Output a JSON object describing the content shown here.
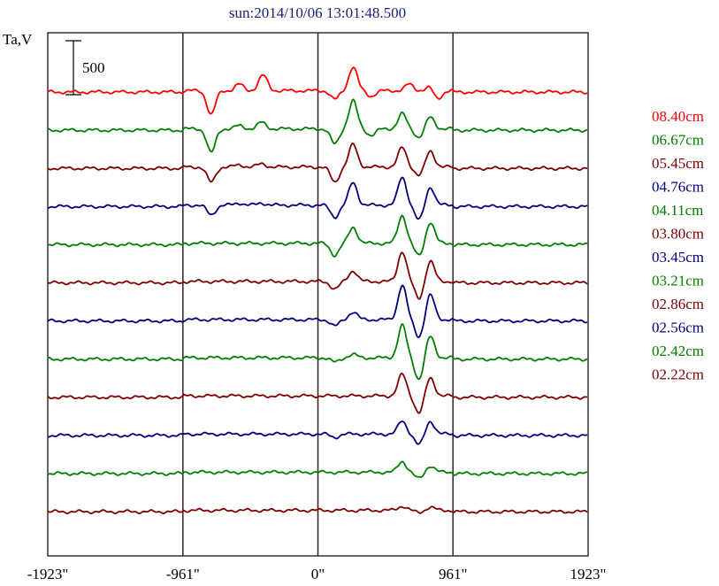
{
  "chart_data": {
    "type": "line",
    "title": "sun:2014/10/06 13:01:48.500",
    "ylabel": "Ta,V",
    "xlabel": "",
    "xlim": [
      -1923,
      1923
    ],
    "x_ticks": [
      {
        "value": -1923,
        "label": "-1923\""
      },
      {
        "value": -961,
        "label": "-961\""
      },
      {
        "value": 0,
        "label": "0\""
      },
      {
        "value": 961,
        "label": "961\""
      },
      {
        "value": 1923,
        "label": "1923\""
      }
    ],
    "vertical_lines": [
      -961,
      0,
      961
    ],
    "scale_bar": {
      "value": 500,
      "label": "500"
    },
    "grid": false,
    "legend_position": "right",
    "series": [
      {
        "name": "08.40cm",
        "color": "#ff0000",
        "peaks": [
          [
            -760,
            -220
          ],
          [
            -560,
            60
          ],
          [
            -400,
            80
          ],
          [
            -380,
            70
          ],
          [
            120,
            -80
          ],
          [
            250,
            220
          ],
          [
            380,
            -50
          ],
          [
            650,
            60
          ],
          [
            850,
            -80
          ],
          [
            800,
            40
          ]
        ]
      },
      {
        "name": "06.67cm",
        "color": "#008000",
        "peaks": [
          [
            -760,
            -220
          ],
          [
            -560,
            30
          ],
          [
            -400,
            60
          ],
          [
            120,
            -140
          ],
          [
            250,
            260
          ],
          [
            380,
            -60
          ],
          [
            600,
            140
          ],
          [
            720,
            -80
          ],
          [
            800,
            110
          ]
        ]
      },
      {
        "name": "05.45cm",
        "color": "#800000",
        "peaks": [
          [
            -760,
            -140
          ],
          [
            -560,
            20
          ],
          [
            -400,
            30
          ],
          [
            120,
            -140
          ],
          [
            250,
            210
          ],
          [
            600,
            180
          ],
          [
            720,
            -80
          ],
          [
            800,
            150
          ]
        ]
      },
      {
        "name": "04.76cm",
        "color": "#000080",
        "peaks": [
          [
            -760,
            -90
          ],
          [
            -560,
            20
          ],
          [
            -400,
            20
          ],
          [
            120,
            -110
          ],
          [
            250,
            210
          ],
          [
            600,
            260
          ],
          [
            720,
            -140
          ],
          [
            800,
            170
          ]
        ]
      },
      {
        "name": "04.11cm",
        "color": "#008000",
        "peaks": [
          [
            120,
            -110
          ],
          [
            250,
            150
          ],
          [
            600,
            260
          ],
          [
            720,
            -120
          ],
          [
            800,
            200
          ]
        ]
      },
      {
        "name": "03.80cm",
        "color": "#800000",
        "peaks": [
          [
            120,
            -70
          ],
          [
            250,
            100
          ],
          [
            600,
            280
          ],
          [
            720,
            -160
          ],
          [
            800,
            190
          ]
        ]
      },
      {
        "name": "03.45cm",
        "color": "#000080",
        "peaks": [
          [
            120,
            -60
          ],
          [
            250,
            70
          ],
          [
            600,
            320
          ],
          [
            720,
            -160
          ],
          [
            800,
            230
          ]
        ]
      },
      {
        "name": "03.21cm",
        "color": "#008000",
        "peaks": [
          [
            120,
            -40
          ],
          [
            250,
            30
          ],
          [
            600,
            300
          ],
          [
            720,
            -200
          ],
          [
            800,
            200
          ]
        ]
      },
      {
        "name": "02.86cm",
        "color": "#800000",
        "peaks": [
          [
            600,
            200
          ],
          [
            720,
            -160
          ],
          [
            800,
            170
          ]
        ]
      },
      {
        "name": "02.56cm",
        "color": "#000080",
        "peaks": [
          [
            120,
            -30
          ],
          [
            600,
            120
          ],
          [
            720,
            -100
          ],
          [
            800,
            120
          ]
        ]
      },
      {
        "name": "02.42cm",
        "color": "#008000",
        "peaks": [
          [
            600,
            100
          ],
          [
            720,
            -60
          ],
          [
            800,
            60
          ]
        ]
      },
      {
        "name": "02.22cm",
        "color": "#800000",
        "peaks": [
          [
            600,
            40
          ],
          [
            720,
            -20
          ],
          [
            800,
            30
          ]
        ]
      }
    ]
  }
}
